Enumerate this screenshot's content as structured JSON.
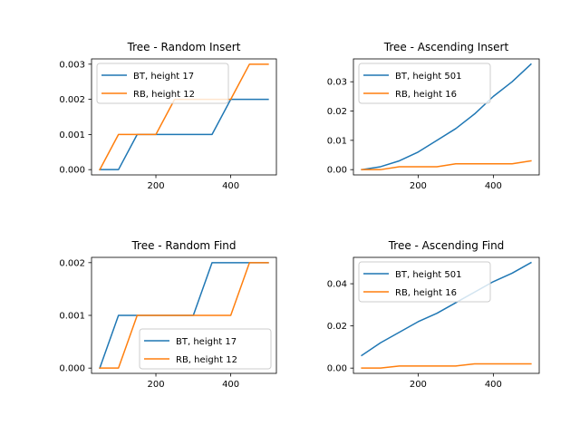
{
  "chart_data": [
    {
      "type": "line",
      "title": "Tree - Random Insert",
      "xlabel": "",
      "ylabel": "",
      "xlim": [
        28,
        522
      ],
      "ylim": [
        -0.00015,
        0.00315
      ],
      "xticks": [
        200,
        400
      ],
      "xtick_labels": [
        "200",
        "400"
      ],
      "yticks": [
        0,
        0.001,
        0.002,
        0.003
      ],
      "ytick_labels": [
        "0.000",
        "0.001",
        "0.002",
        "0.003"
      ],
      "grid": false,
      "legend": "upper-left",
      "x": [
        50,
        100,
        150,
        200,
        250,
        300,
        350,
        400,
        450,
        500
      ],
      "series": [
        {
          "name": "BT, height 17",
          "color": "#1f77b4",
          "values": [
            0,
            0,
            0.001,
            0.001,
            0.001,
            0.001,
            0.001,
            0.002,
            0.002,
            0.002
          ]
        },
        {
          "name": "RB, height 12",
          "color": "#ff7f0e",
          "values": [
            0,
            0.001,
            0.001,
            0.001,
            0.002,
            0.002,
            0.002,
            0.002,
            0.003,
            0.003
          ]
        }
      ]
    },
    {
      "type": "line",
      "title": "Tree - Ascending Insert",
      "xlabel": "",
      "ylabel": "",
      "xlim": [
        28,
        522
      ],
      "ylim": [
        -0.0018,
        0.0378
      ],
      "xticks": [
        200,
        400
      ],
      "xtick_labels": [
        "200",
        "400"
      ],
      "yticks": [
        0,
        0.01,
        0.02,
        0.03
      ],
      "ytick_labels": [
        "0.00",
        "0.01",
        "0.02",
        "0.03"
      ],
      "grid": false,
      "legend": "upper-left",
      "x": [
        50,
        100,
        150,
        200,
        250,
        300,
        350,
        400,
        450,
        500
      ],
      "series": [
        {
          "name": "BT, height 501",
          "color": "#1f77b4",
          "values": [
            0,
            0.001,
            0.003,
            0.006,
            0.01,
            0.014,
            0.019,
            0.025,
            0.03,
            0.036
          ]
        },
        {
          "name": "RB, height 16",
          "color": "#ff7f0e",
          "values": [
            0,
            0,
            0.001,
            0.001,
            0.001,
            0.002,
            0.002,
            0.002,
            0.002,
            0.003
          ]
        }
      ]
    },
    {
      "type": "line",
      "title": "Tree - Random Find",
      "xlabel": "",
      "ylabel": "",
      "xlim": [
        28,
        522
      ],
      "ylim": [
        -0.0001,
        0.0021
      ],
      "xticks": [
        200,
        400
      ],
      "xtick_labels": [
        "200",
        "400"
      ],
      "yticks": [
        0,
        0.001,
        0.002
      ],
      "ytick_labels": [
        "0.000",
        "0.001",
        "0.002"
      ],
      "grid": false,
      "legend": "lower-right",
      "x": [
        50,
        100,
        150,
        200,
        250,
        300,
        350,
        400,
        450,
        500
      ],
      "series": [
        {
          "name": "BT, height 17",
          "color": "#1f77b4",
          "values": [
            0,
            0.001,
            0.001,
            0.001,
            0.001,
            0.001,
            0.002,
            0.002,
            0.002,
            0.002
          ]
        },
        {
          "name": "RB, height 12",
          "color": "#ff7f0e",
          "values": [
            0,
            0,
            0.001,
            0.001,
            0.001,
            0.001,
            0.001,
            0.001,
            0.002,
            0.002
          ]
        }
      ]
    },
    {
      "type": "line",
      "title": "Tree - Ascending Find",
      "xlabel": "",
      "ylabel": "",
      "xlim": [
        28,
        522
      ],
      "ylim": [
        -0.0025,
        0.0525
      ],
      "xticks": [
        200,
        400
      ],
      "xtick_labels": [
        "200",
        "400"
      ],
      "yticks": [
        0,
        0.02,
        0.04
      ],
      "ytick_labels": [
        "0.00",
        "0.02",
        "0.04"
      ],
      "grid": false,
      "legend": "upper-left",
      "x": [
        50,
        100,
        150,
        200,
        250,
        300,
        350,
        400,
        450,
        500
      ],
      "series": [
        {
          "name": "BT, height 501",
          "color": "#1f77b4",
          "values": [
            0.006,
            0.012,
            0.017,
            0.022,
            0.026,
            0.031,
            0.036,
            0.041,
            0.045,
            0.05
          ]
        },
        {
          "name": "RB, height 16",
          "color": "#ff7f0e",
          "values": [
            0,
            0,
            0.001,
            0.001,
            0.001,
            0.001,
            0.002,
            0.002,
            0.002,
            0.002
          ]
        }
      ]
    }
  ]
}
